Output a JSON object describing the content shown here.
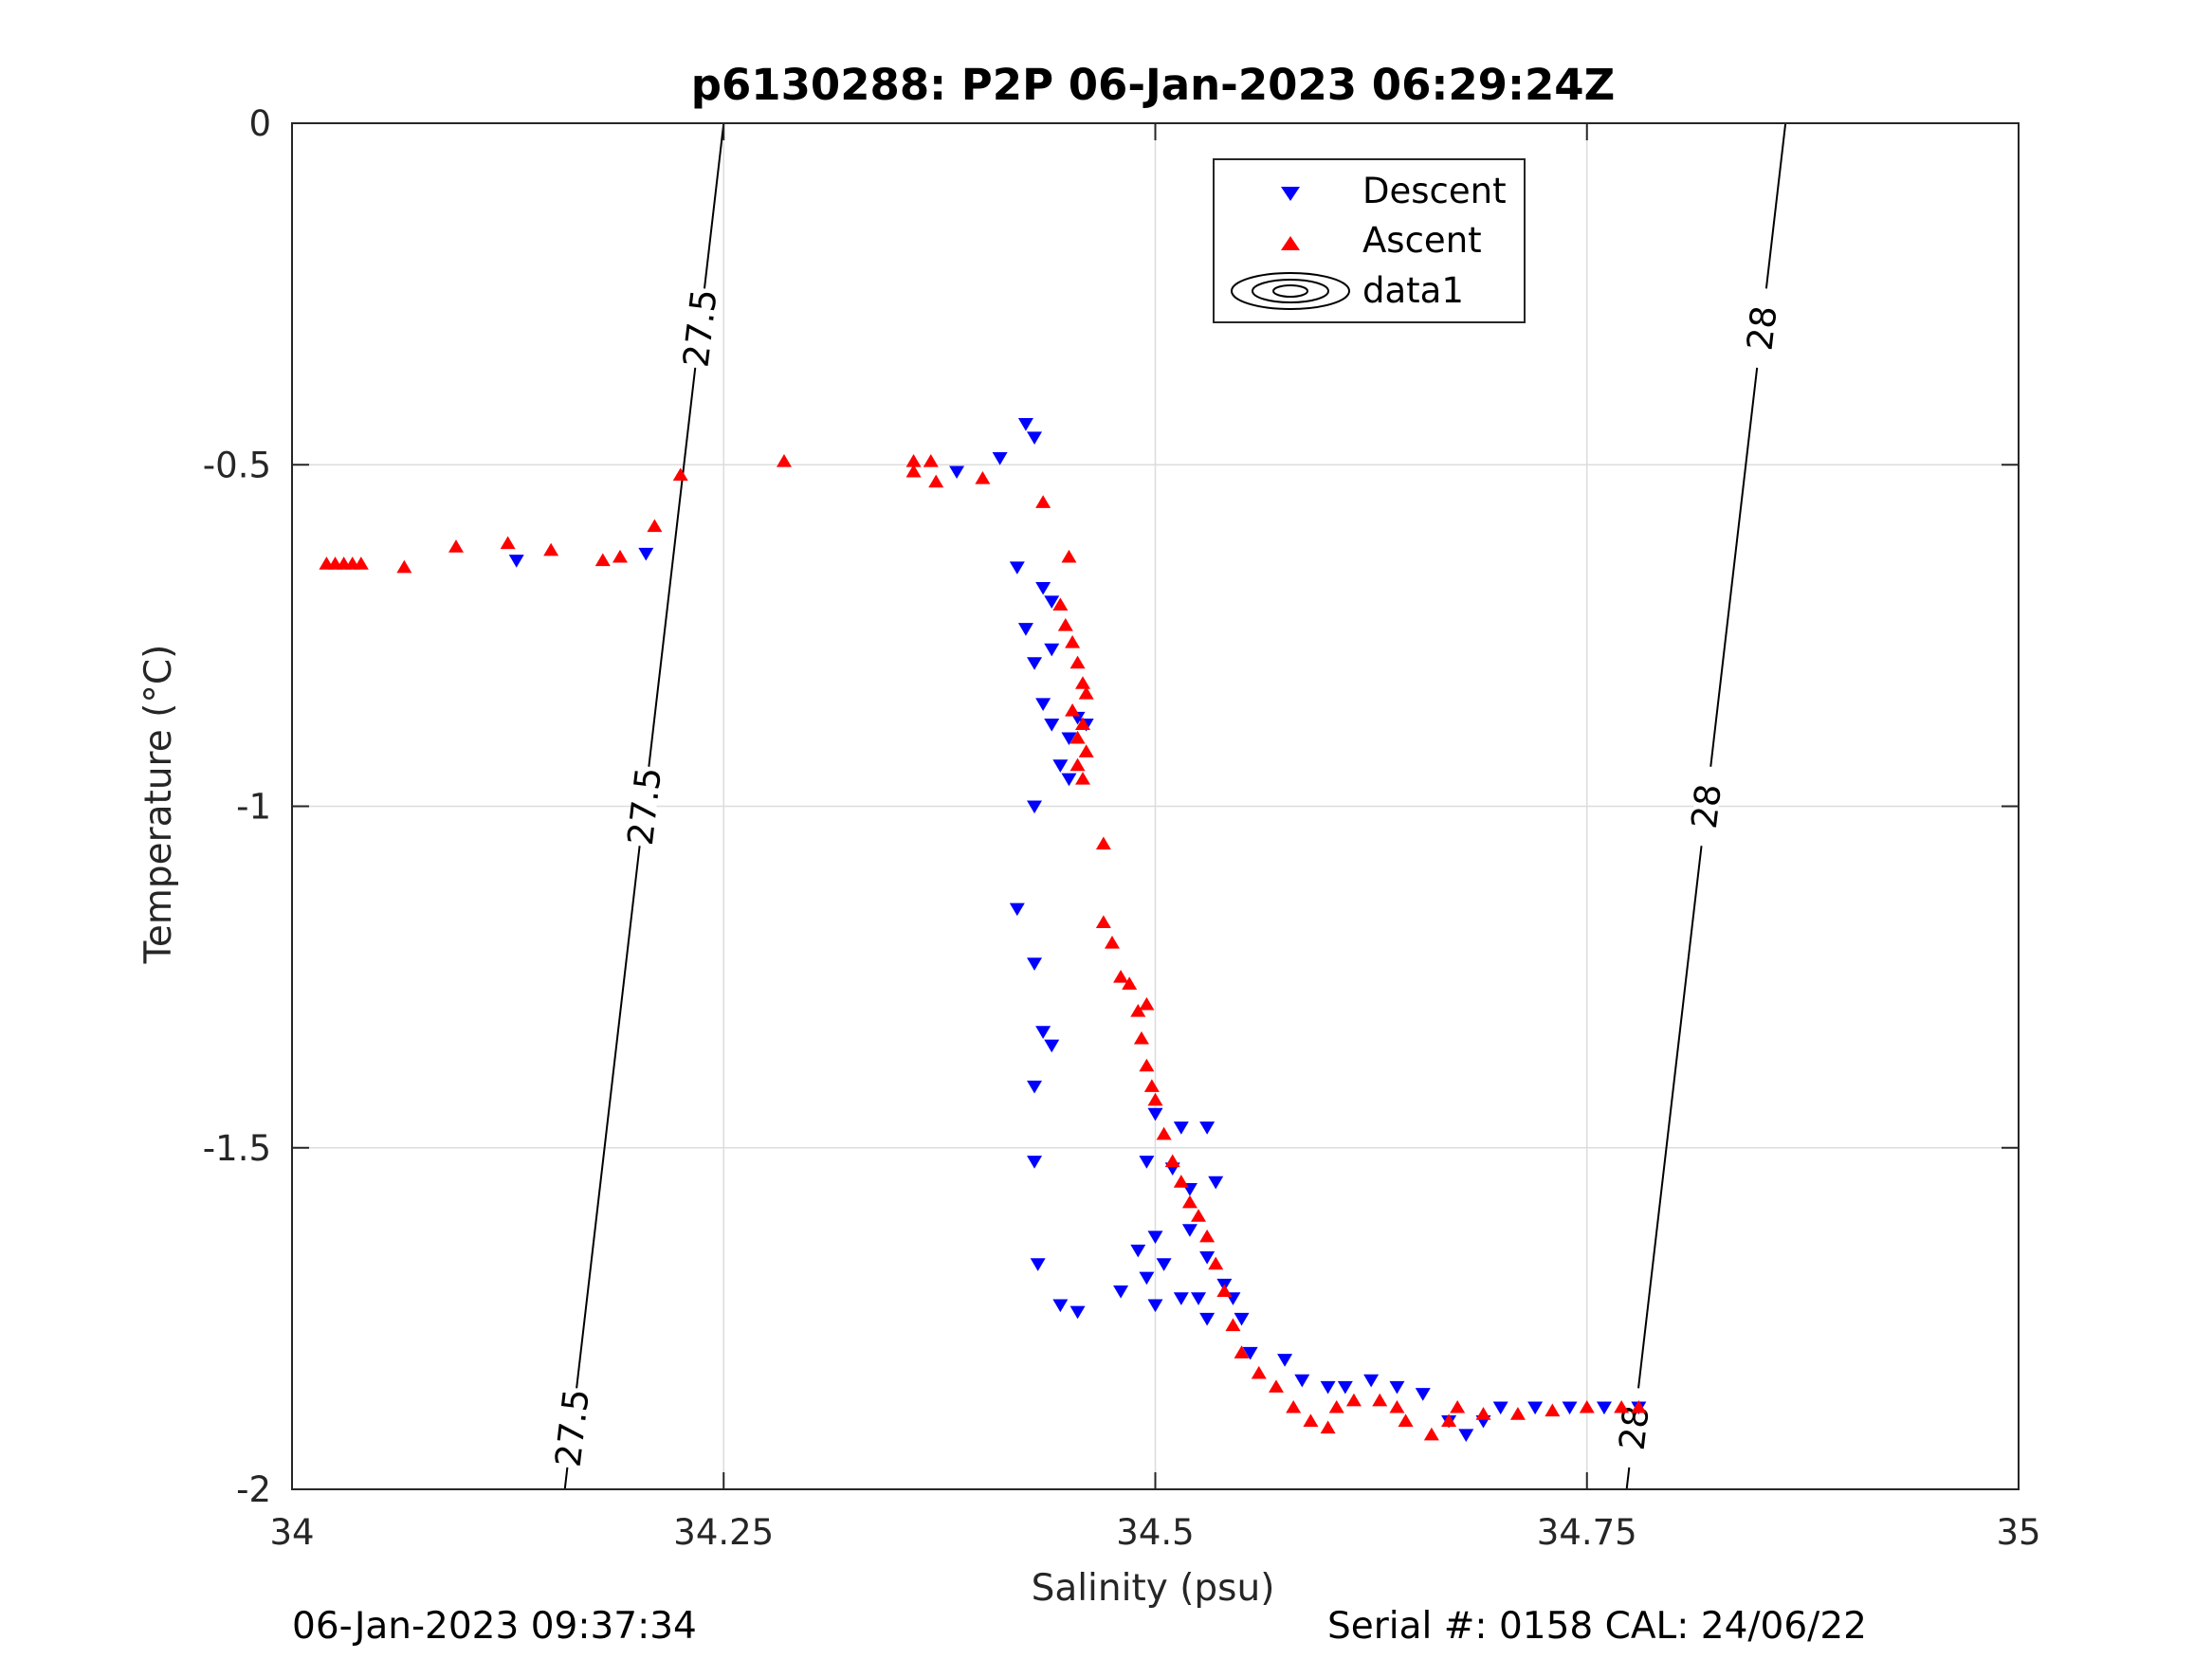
{
  "chart_data": {
    "type": "scatter",
    "title": "p6130288: P2P 06-Jan-2023 06:29:24Z",
    "xlabel": "Salinity (psu)",
    "ylabel": "Temperature (°C)",
    "xlim": [
      34,
      35
    ],
    "ylim": [
      -2,
      0
    ],
    "xticks": [
      "34",
      "34.25",
      "34.5",
      "34.75",
      "35"
    ],
    "yticks": [
      "0",
      "-0.5",
      "-1",
      "-1.5",
      "-2"
    ],
    "grid": true,
    "legend": {
      "placement": "top-center",
      "entries": [
        "Descent",
        "Ascent",
        "data1"
      ]
    },
    "series": [
      {
        "name": "Descent",
        "marker": "triangle-down",
        "color": "#0000ff",
        "points": [
          [
            34.13,
            -0.64
          ],
          [
            34.205,
            -0.63
          ],
          [
            34.385,
            -0.51
          ],
          [
            34.41,
            -0.49
          ],
          [
            34.425,
            -0.44
          ],
          [
            34.43,
            -0.46
          ],
          [
            34.42,
            -0.65
          ],
          [
            34.435,
            -0.68
          ],
          [
            34.425,
            -0.74
          ],
          [
            34.44,
            -0.7
          ],
          [
            34.43,
            -0.79
          ],
          [
            34.44,
            -0.77
          ],
          [
            34.435,
            -0.85
          ],
          [
            34.44,
            -0.88
          ],
          [
            34.45,
            -0.9
          ],
          [
            34.445,
            -0.94
          ],
          [
            34.45,
            -0.96
          ],
          [
            34.455,
            -0.87
          ],
          [
            34.46,
            -0.88
          ],
          [
            34.43,
            -1.0
          ],
          [
            34.42,
            -1.15
          ],
          [
            34.43,
            -1.23
          ],
          [
            34.435,
            -1.33
          ],
          [
            34.44,
            -1.35
          ],
          [
            34.43,
            -1.41
          ],
          [
            34.43,
            -1.52
          ],
          [
            34.432,
            -1.67
          ],
          [
            34.445,
            -1.73
          ],
          [
            34.455,
            -1.74
          ],
          [
            34.495,
            -1.52
          ],
          [
            34.5,
            -1.45
          ],
          [
            34.51,
            -1.53
          ],
          [
            34.515,
            -1.47
          ],
          [
            34.52,
            -1.56
          ],
          [
            34.53,
            -1.47
          ],
          [
            34.535,
            -1.55
          ],
          [
            34.49,
            -1.65
          ],
          [
            34.5,
            -1.63
          ],
          [
            34.505,
            -1.67
          ],
          [
            34.495,
            -1.69
          ],
          [
            34.48,
            -1.71
          ],
          [
            34.5,
            -1.73
          ],
          [
            34.515,
            -1.72
          ],
          [
            34.525,
            -1.72
          ],
          [
            34.53,
            -1.75
          ],
          [
            34.545,
            -1.72
          ],
          [
            34.55,
            -1.75
          ],
          [
            34.53,
            -1.66
          ],
          [
            34.52,
            -1.62
          ],
          [
            34.54,
            -1.7
          ],
          [
            34.555,
            -1.8
          ],
          [
            34.575,
            -1.81
          ],
          [
            34.585,
            -1.84
          ],
          [
            34.6,
            -1.85
          ],
          [
            34.61,
            -1.85
          ],
          [
            34.625,
            -1.84
          ],
          [
            34.64,
            -1.85
          ],
          [
            34.655,
            -1.86
          ],
          [
            34.67,
            -1.9
          ],
          [
            34.68,
            -1.92
          ],
          [
            34.69,
            -1.9
          ],
          [
            34.7,
            -1.88
          ],
          [
            34.72,
            -1.88
          ],
          [
            34.74,
            -1.88
          ],
          [
            34.76,
            -1.88
          ],
          [
            34.78,
            -1.88
          ]
        ]
      },
      {
        "name": "Ascent",
        "marker": "triangle-up",
        "color": "#ff0000",
        "points": [
          [
            34.02,
            -0.645
          ],
          [
            34.025,
            -0.645
          ],
          [
            34.03,
            -0.645
          ],
          [
            34.035,
            -0.645
          ],
          [
            34.04,
            -0.645
          ],
          [
            34.065,
            -0.65
          ],
          [
            34.095,
            -0.62
          ],
          [
            34.125,
            -0.615
          ],
          [
            34.15,
            -0.625
          ],
          [
            34.18,
            -0.64
          ],
          [
            34.19,
            -0.635
          ],
          [
            34.21,
            -0.59
          ],
          [
            34.225,
            -0.515
          ],
          [
            34.285,
            -0.495
          ],
          [
            34.36,
            -0.495
          ],
          [
            34.36,
            -0.51
          ],
          [
            34.37,
            -0.495
          ],
          [
            34.373,
            -0.525
          ],
          [
            34.4,
            -0.52
          ],
          [
            34.435,
            -0.555
          ],
          [
            34.45,
            -0.635
          ],
          [
            34.445,
            -0.705
          ],
          [
            34.448,
            -0.735
          ],
          [
            34.452,
            -0.76
          ],
          [
            34.455,
            -0.79
          ],
          [
            34.458,
            -0.82
          ],
          [
            34.46,
            -0.835
          ],
          [
            34.452,
            -0.86
          ],
          [
            34.458,
            -0.88
          ],
          [
            34.455,
            -0.9
          ],
          [
            34.46,
            -0.92
          ],
          [
            34.455,
            -0.94
          ],
          [
            34.458,
            -0.96
          ],
          [
            34.47,
            -1.055
          ],
          [
            34.47,
            -1.17
          ],
          [
            34.475,
            -1.2
          ],
          [
            34.48,
            -1.25
          ],
          [
            34.485,
            -1.26
          ],
          [
            34.49,
            -1.3
          ],
          [
            34.495,
            -1.29
          ],
          [
            34.492,
            -1.34
          ],
          [
            34.495,
            -1.38
          ],
          [
            34.498,
            -1.41
          ],
          [
            34.5,
            -1.43
          ],
          [
            34.505,
            -1.48
          ],
          [
            34.51,
            -1.52
          ],
          [
            34.515,
            -1.55
          ],
          [
            34.52,
            -1.58
          ],
          [
            34.525,
            -1.6
          ],
          [
            34.53,
            -1.63
          ],
          [
            34.535,
            -1.67
          ],
          [
            34.54,
            -1.71
          ],
          [
            34.545,
            -1.76
          ],
          [
            34.55,
            -1.8
          ],
          [
            34.56,
            -1.83
          ],
          [
            34.57,
            -1.85
          ],
          [
            34.58,
            -1.88
          ],
          [
            34.59,
            -1.9
          ],
          [
            34.6,
            -1.91
          ],
          [
            34.605,
            -1.88
          ],
          [
            34.615,
            -1.87
          ],
          [
            34.63,
            -1.87
          ],
          [
            34.64,
            -1.88
          ],
          [
            34.645,
            -1.9
          ],
          [
            34.66,
            -1.92
          ],
          [
            34.67,
            -1.9
          ],
          [
            34.675,
            -1.88
          ],
          [
            34.69,
            -1.89
          ],
          [
            34.71,
            -1.89
          ],
          [
            34.73,
            -1.885
          ],
          [
            34.75,
            -1.88
          ],
          [
            34.77,
            -1.88
          ],
          [
            34.78,
            -1.88
          ]
        ]
      }
    ],
    "contours": [
      {
        "label": "27.5",
        "points": [
          [
            34.158,
            -2.0
          ],
          [
            34.25,
            0.0
          ]
        ]
      },
      {
        "label": "28",
        "points": [
          [
            34.773,
            -2.0
          ],
          [
            34.865,
            0.0
          ]
        ]
      }
    ]
  },
  "footer": {
    "left": "06-Jan-2023 09:37:34",
    "right": "Serial #: 0158  CAL: 24/06/22"
  }
}
